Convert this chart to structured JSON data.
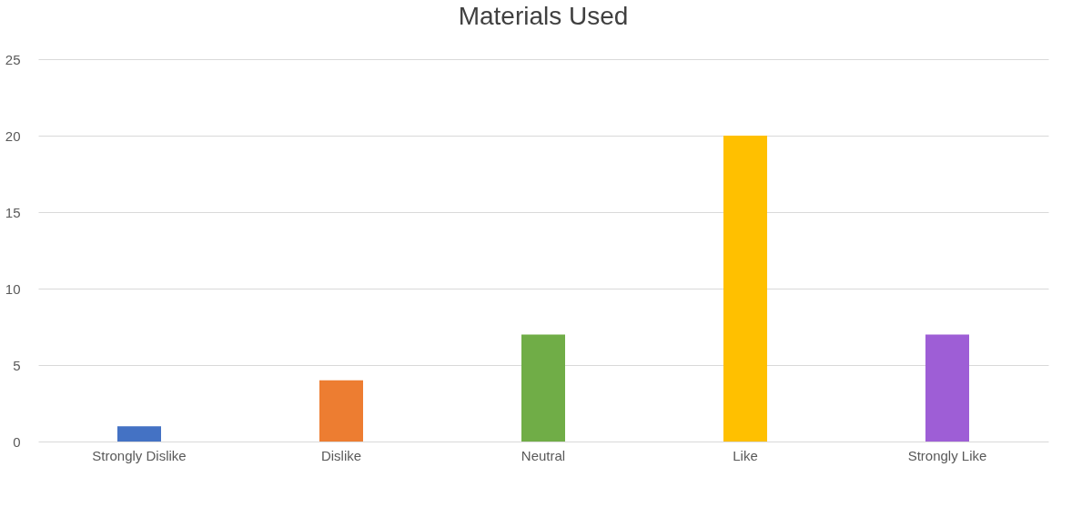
{
  "chart_data": {
    "type": "bar",
    "title": "Materials Used",
    "categories": [
      "Strongly Dislike",
      "Dislike",
      "Neutral",
      "Like",
      "Strongly Like"
    ],
    "values": [
      1,
      4,
      7,
      20,
      7
    ],
    "colors": [
      "#4472c4",
      "#ed7d31",
      "#70ad47",
      "#ffc000",
      "#9e5ed6"
    ],
    "ylim": [
      0,
      25
    ],
    "yticks": [
      0,
      5,
      10,
      15,
      20,
      25
    ],
    "grid": "y"
  }
}
